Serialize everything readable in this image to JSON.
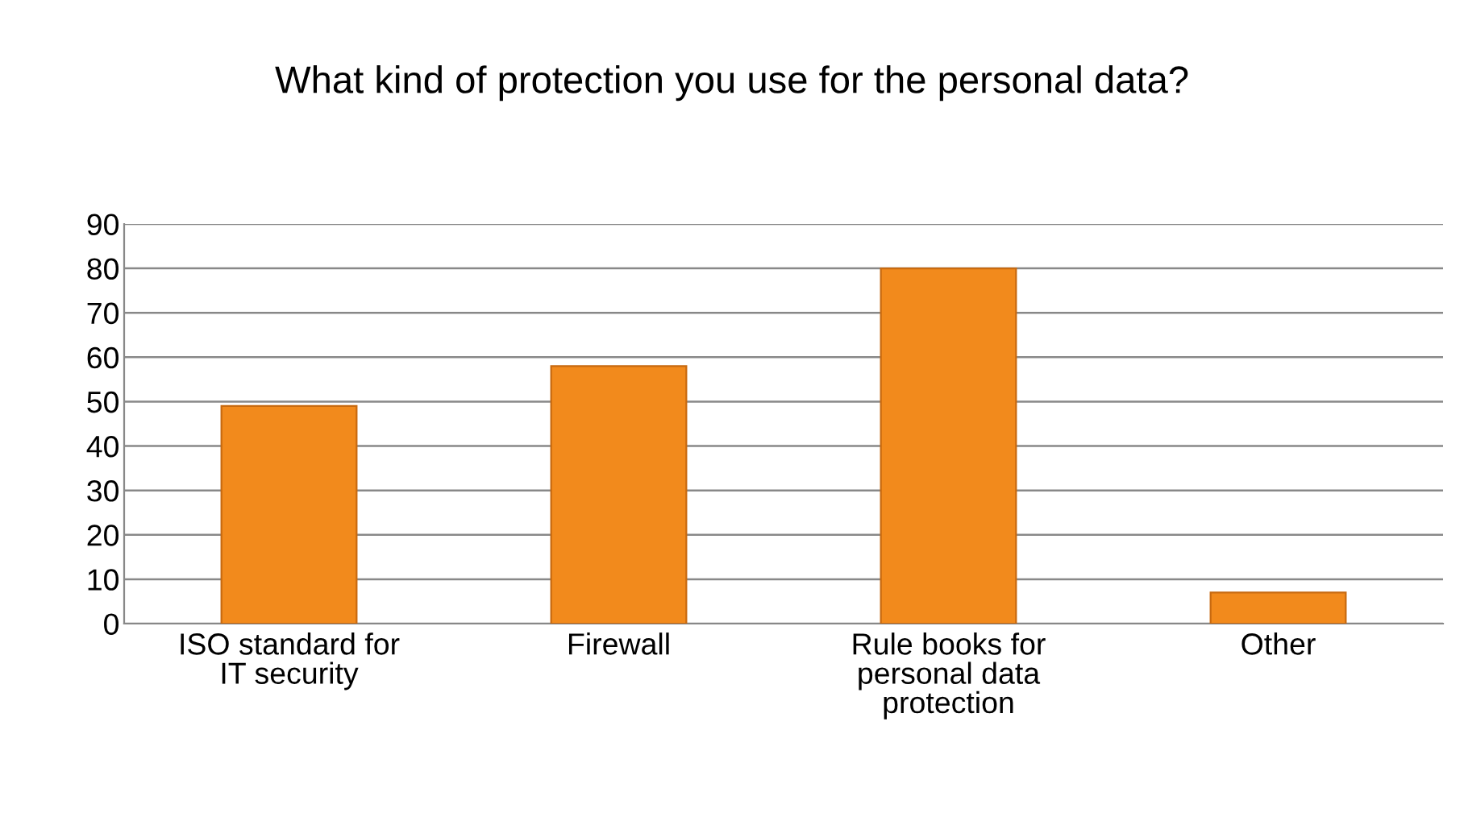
{
  "chart_data": {
    "type": "bar",
    "title": "What kind of protection you use for the personal data?",
    "categories": [
      "ISO standard for\nIT security",
      "Firewall",
      "Rule books for\npersonal data\nprotection",
      "Other"
    ],
    "values": [
      49,
      58,
      80,
      7
    ],
    "color": "#f28a1c",
    "ylim": [
      0,
      90
    ],
    "yticks": [
      0,
      10,
      20,
      30,
      40,
      50,
      60,
      70,
      80,
      90
    ],
    "grid": "y",
    "legend": false
  }
}
